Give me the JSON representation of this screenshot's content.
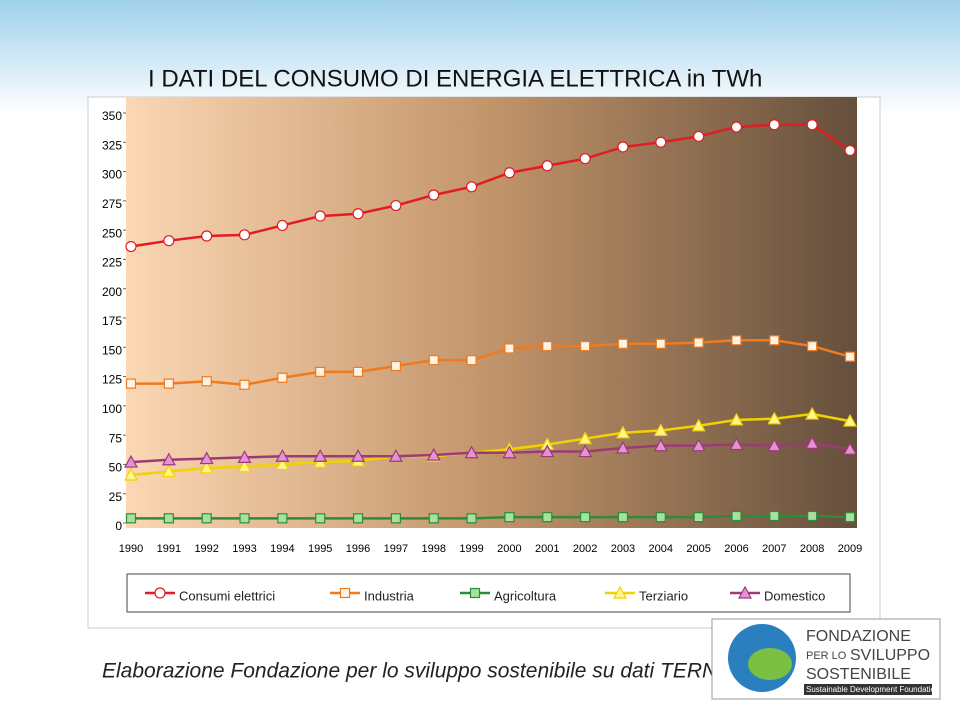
{
  "chart_data": {
    "type": "line",
    "title": "I DATI DEL CONSUMO DI ENERGIA ELETTRICA in TWh",
    "categories": [
      "1990",
      "1991",
      "1992",
      "1993",
      "1994",
      "1995",
      "1996",
      "1997",
      "1998",
      "1999",
      "2000",
      "2001",
      "2002",
      "2003",
      "2004",
      "2005",
      "2006",
      "2007",
      "2008",
      "2009"
    ],
    "ylim": [
      0,
      350
    ],
    "yticks": [
      0,
      25,
      50,
      75,
      100,
      125,
      150,
      175,
      200,
      225,
      250,
      275,
      300,
      325,
      350
    ],
    "legend": "bottom",
    "series": [
      {
        "name": "Consumi elettrici",
        "color": "#e31b23",
        "fill": "#ffffff",
        "marker": "circle",
        "values": [
          236,
          241,
          245,
          246,
          254,
          262,
          264,
          271,
          280,
          287,
          299,
          305,
          311,
          321,
          325,
          330,
          338,
          340,
          340,
          318
        ]
      },
      {
        "name": "Industria",
        "color": "#f07a1e",
        "fill": "#fff3e6",
        "marker": "square",
        "values": [
          119,
          119,
          121,
          118,
          124,
          129,
          129,
          134,
          139,
          139,
          149,
          151,
          151,
          153,
          153,
          154,
          156,
          156,
          151,
          142
        ]
      },
      {
        "name": "Agricoltura",
        "color": "#2e8b3a",
        "fill": "#a8e0a0",
        "marker": "square",
        "values": [
          4,
          4,
          4,
          4,
          4,
          4,
          4,
          4,
          4,
          4,
          5,
          5,
          5,
          5,
          5,
          5,
          6,
          6,
          6,
          5
        ]
      },
      {
        "name": "Terziario",
        "color": "#f2d200",
        "fill": "#fff58a",
        "marker": "triangle",
        "values": [
          41,
          44,
          47,
          48,
          50,
          52,
          53,
          57,
          57,
          60,
          63,
          67,
          72,
          77,
          79,
          83,
          88,
          89,
          93,
          87
        ]
      },
      {
        "name": "Domestico",
        "color": "#9c3a78",
        "fill": "#e592d2",
        "marker": "triangle",
        "values": [
          52,
          54,
          55,
          56,
          57,
          57,
          57,
          57,
          58,
          60,
          60,
          61,
          61,
          64,
          66,
          66,
          67,
          66,
          68,
          63
        ]
      }
    ]
  },
  "footer": "Elaborazione Fondazione per lo sviluppo sostenibile su dati TERNA",
  "logo": {
    "line1": "FONDAZIONE",
    "line2a": "PER LO",
    "line2b": "SVILUPPO",
    "line3": "SOSTENIBILE",
    "tagline": "Sustainable Development Foundation"
  }
}
